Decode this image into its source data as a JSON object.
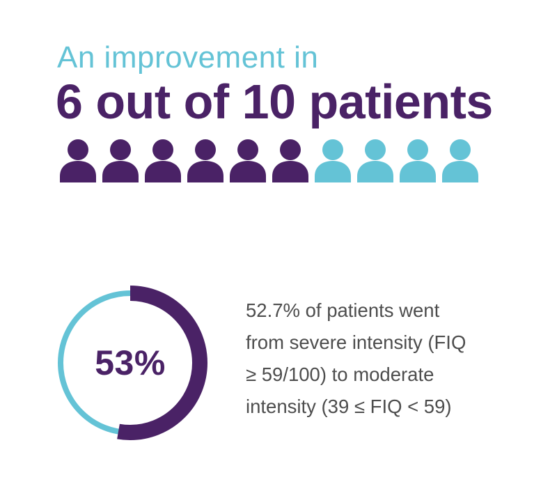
{
  "headline": {
    "prefix": "An improvement in",
    "main": "6 out of 10 patients"
  },
  "icon_array": {
    "total": 10,
    "highlighted": 6,
    "highlight_color": "#4a2266",
    "base_color": "#64c3d6",
    "icon": "person-icon"
  },
  "donut": {
    "label": "53%",
    "percent": 52.7,
    "fill_color": "#4a2266",
    "track_color": "#64c3d6"
  },
  "description": {
    "lines": [
      "52.7% of patients went",
      "from severe intensity  (FIQ",
      "≥ 59/100) to moderate",
      "intensity (39 ≤ FIQ < 59)"
    ]
  }
}
